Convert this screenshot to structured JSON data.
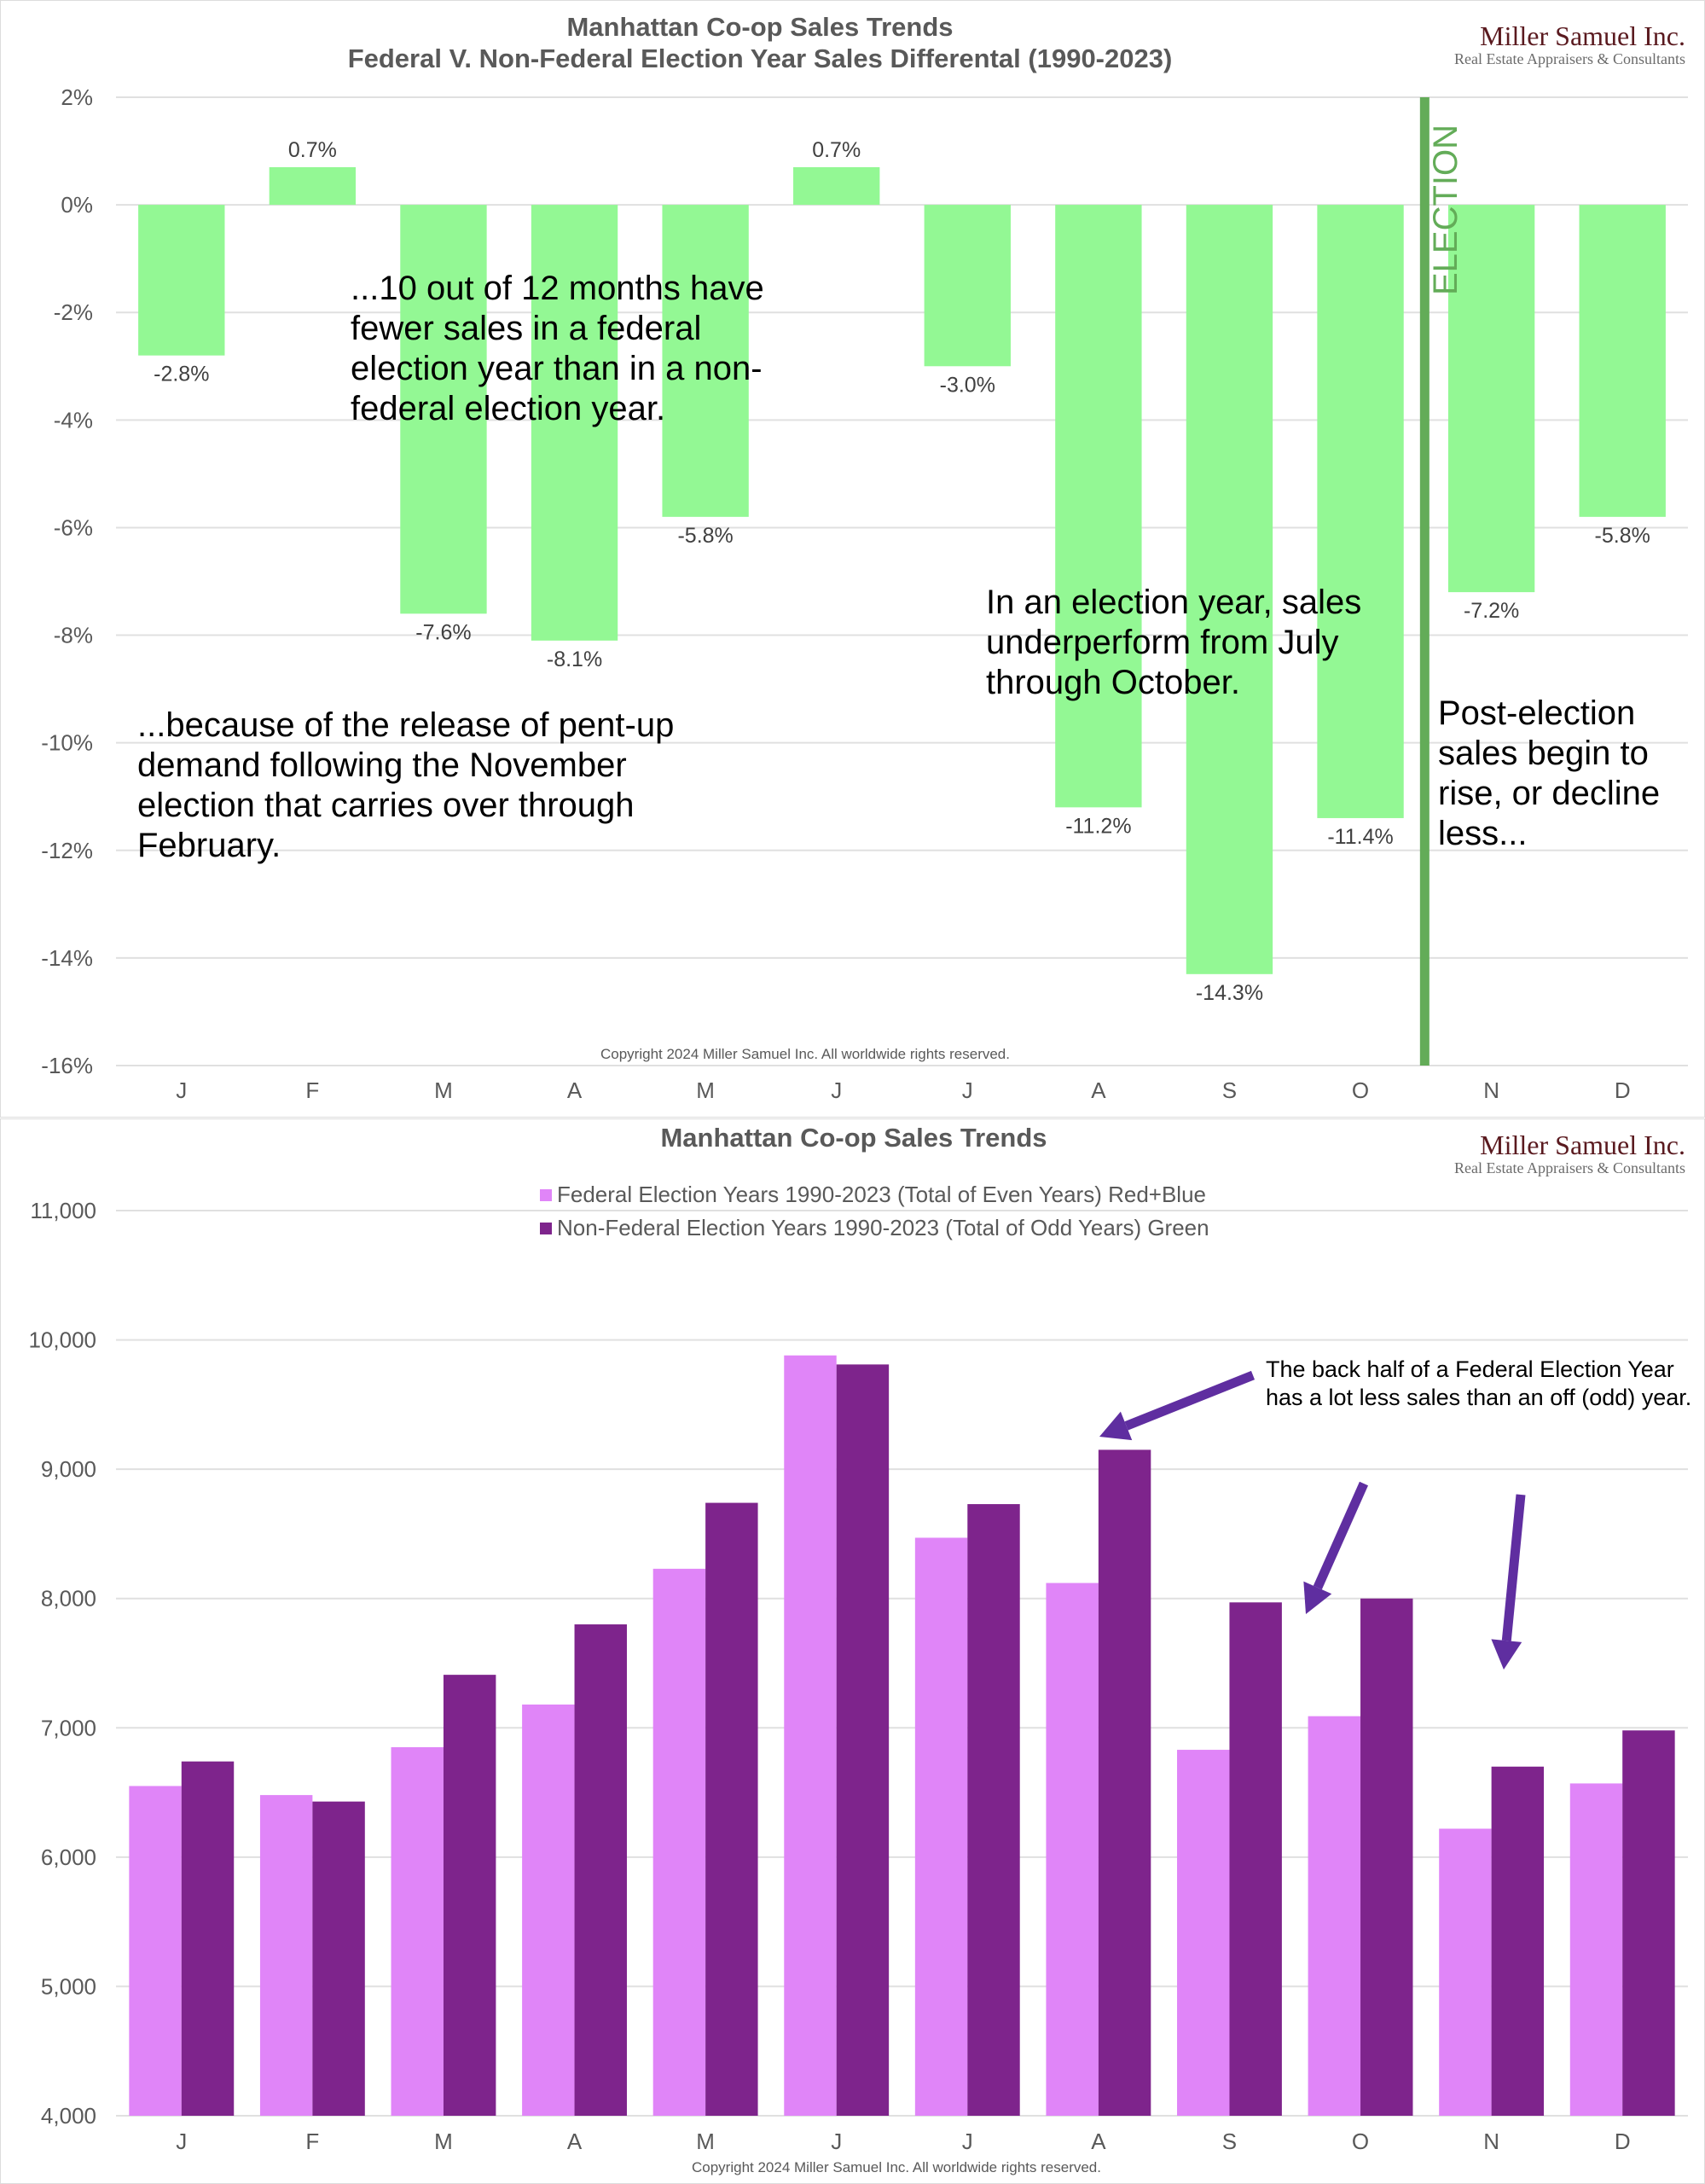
{
  "logo": {
    "name": "Miller Samuel Inc.",
    "tagline": "Real Estate Appraisers & Consultants"
  },
  "colors": {
    "diff_bar": "#93f894",
    "election_line": "#63ac58",
    "federal": "#e085f8",
    "non_federal": "#7e248c",
    "arrow": "#5f2ea0"
  },
  "chart_data": [
    {
      "type": "bar",
      "title": "Manhattan Co-op Sales Trends",
      "subtitle": "Federal V. Non-Federal Election Year Sales Differental (1990-2023)",
      "xlabel": "",
      "ylabel": "",
      "categories": [
        "J",
        "F",
        "M",
        "A",
        "M",
        "J",
        "J",
        "A",
        "S",
        "O",
        "N",
        "D"
      ],
      "values": [
        -2.8,
        0.7,
        -7.6,
        -8.1,
        -5.8,
        0.7,
        -3.0,
        -11.2,
        -14.3,
        -11.4,
        -7.2,
        -5.8
      ],
      "data_labels": [
        "-2.8%",
        "0.7%",
        "-7.6%",
        "-8.1%",
        "-5.8%",
        "0.7%",
        "-3.0%",
        "-11.2%",
        "-14.3%",
        "-11.4%",
        "-7.2%",
        "-5.8%"
      ],
      "ylim": [
        -16,
        2
      ],
      "yticks": [
        2,
        0,
        -2,
        -4,
        -6,
        -8,
        -10,
        -12,
        -14,
        -16
      ],
      "ytick_labels": [
        "2%",
        "0%",
        "-2%",
        "-4%",
        "-6%",
        "-8%",
        "-10%",
        "-12%",
        "-14%",
        "-16%"
      ],
      "grid": true,
      "marker_line": {
        "label": "ELECTION",
        "between": [
          "O",
          "N"
        ]
      },
      "annotations": [
        {
          "id": "ten-of-twelve",
          "lines": [
            "...10 out of 12 months have",
            "fewer sales in a federal",
            "election year than in a non-",
            "federal election year."
          ]
        },
        {
          "id": "pent-up",
          "lines": [
            "...because of the release of pent-up",
            "demand following the November",
            "election that carries over through",
            "February."
          ]
        },
        {
          "id": "underperform",
          "lines": [
            "In an election year, sales",
            "underperform from July",
            "through October."
          ]
        },
        {
          "id": "post-election",
          "lines": [
            "Post-election",
            "sales begin to",
            "rise, or decline",
            "less..."
          ]
        }
      ],
      "copyright": "Copyright 2024 Miller Samuel Inc. All worldwide rights reserved."
    },
    {
      "type": "bar",
      "title": "Manhattan Co-op Sales Trends",
      "xlabel": "",
      "ylabel": "",
      "categories": [
        "J",
        "F",
        "M",
        "A",
        "M",
        "J",
        "J",
        "A",
        "S",
        "O",
        "N",
        "D"
      ],
      "series": [
        {
          "name": "Federal Election Years 1990-2023 (Total of Even Years) Red+Blue",
          "values": [
            6550,
            6480,
            6850,
            7180,
            8230,
            9880,
            8470,
            8120,
            6830,
            7090,
            6220,
            6570
          ]
        },
        {
          "name": "Non-Federal Election Years 1990-2023 (Total of Odd Years) Green",
          "values": [
            6740,
            6430,
            7410,
            7800,
            8740,
            9810,
            8730,
            9150,
            7970,
            8000,
            6700,
            6980
          ]
        }
      ],
      "ylim": [
        4000,
        11000
      ],
      "yticks": [
        11000,
        10000,
        9000,
        8000,
        7000,
        6000,
        5000,
        4000
      ],
      "ytick_labels": [
        "11,000",
        "10,000",
        "9,000",
        "8,000",
        "7,000",
        "6,000",
        "5,000",
        "4,000"
      ],
      "grid": true,
      "legend": "top-center",
      "annotations": [
        {
          "id": "back-half",
          "lines": [
            "The back half of a Federal Election Year",
            "has a lot less sales than an off (odd) year."
          ]
        }
      ],
      "copyright": "Copyright 2024 Miller Samuel Inc. All worldwide rights reserved."
    }
  ]
}
